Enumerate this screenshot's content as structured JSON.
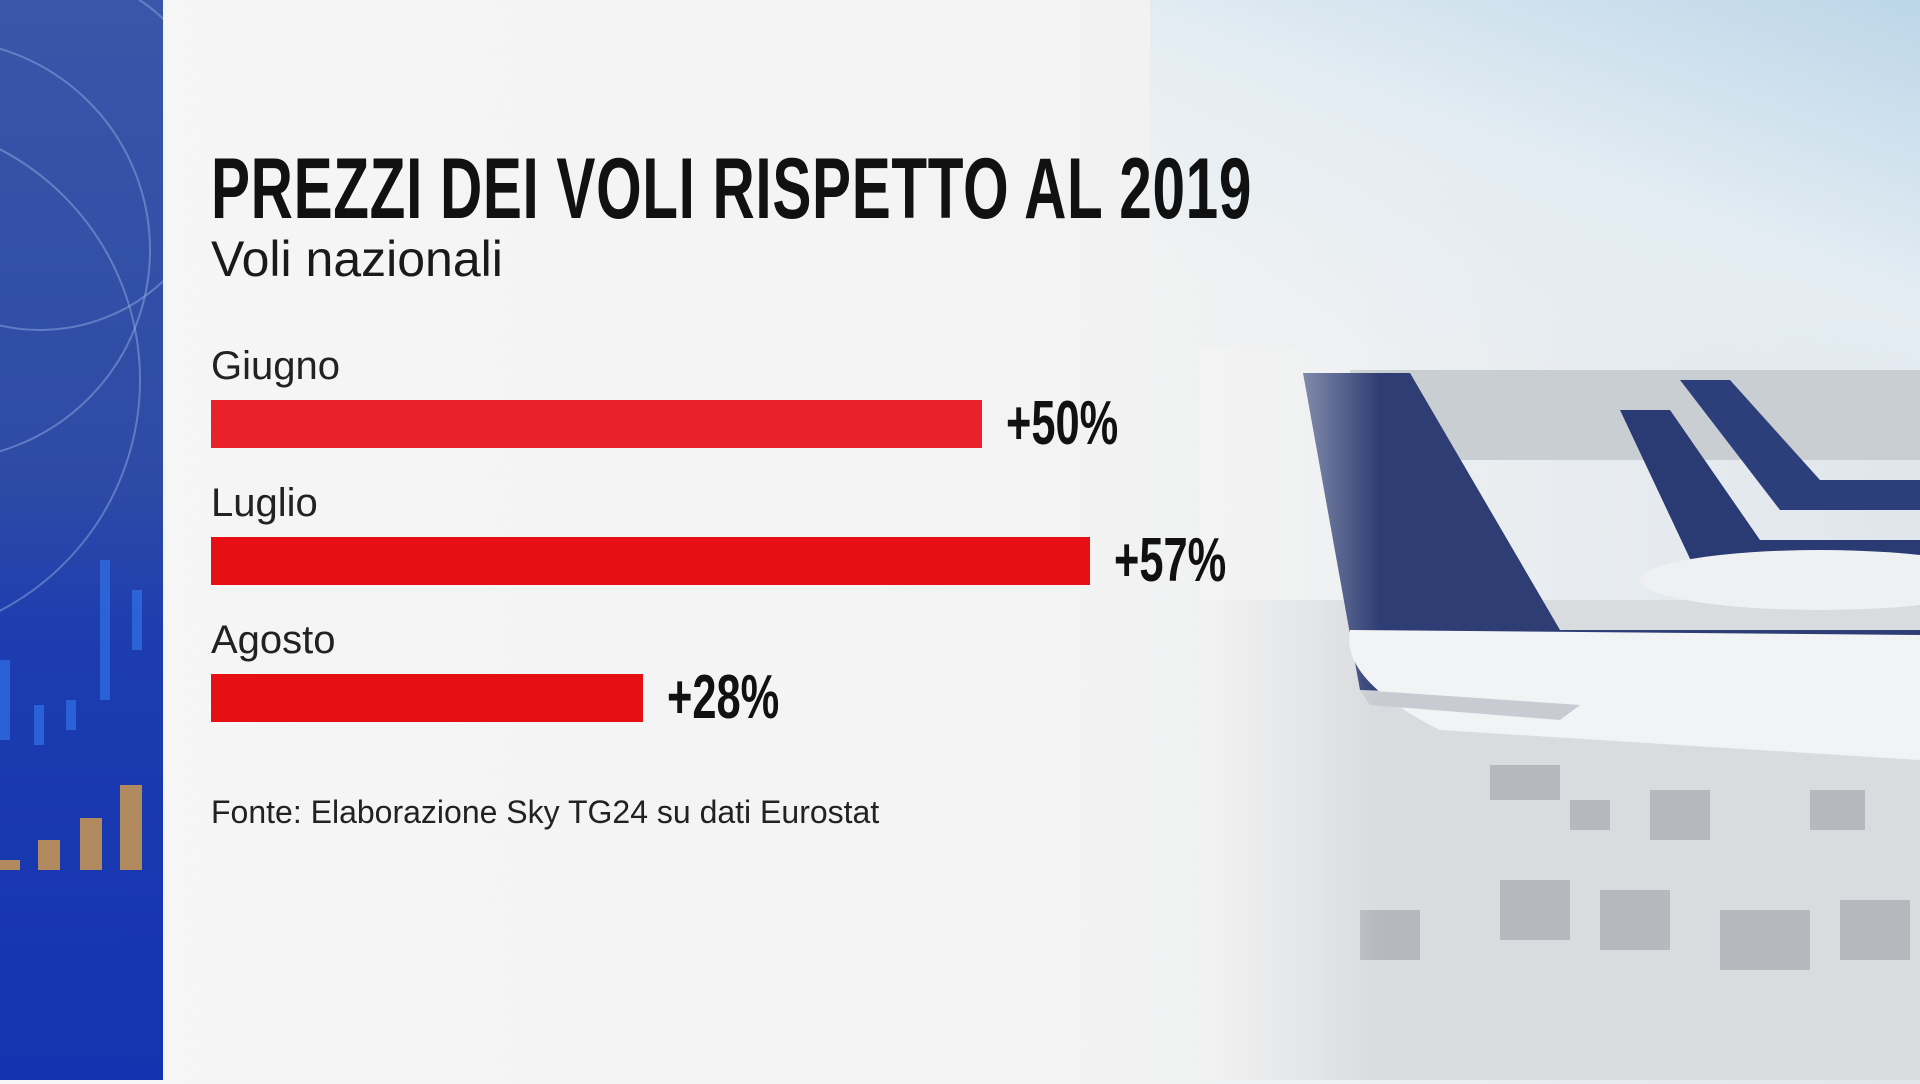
{
  "chart_data": {
    "type": "bar",
    "orientation": "horizontal",
    "title": "PREZZI DEI VOLI RISPETTO AL 2019",
    "subtitle": "Voli nazionali",
    "categories": [
      "Giugno",
      "Luglio",
      "Agosto"
    ],
    "values": [
      50,
      57,
      28
    ],
    "value_labels": [
      "+50%",
      "+57%",
      "+28%"
    ],
    "unit": "%",
    "bar_colors": [
      "#e8212a",
      "#e61014",
      "#e61014"
    ],
    "grid": false,
    "source": "Fonte: Elaborazione Sky TG24 su dati Eurostat"
  },
  "colors": {
    "side_panel": "#2d4aa6",
    "bar": "#e61014",
    "text": "#111111"
  }
}
